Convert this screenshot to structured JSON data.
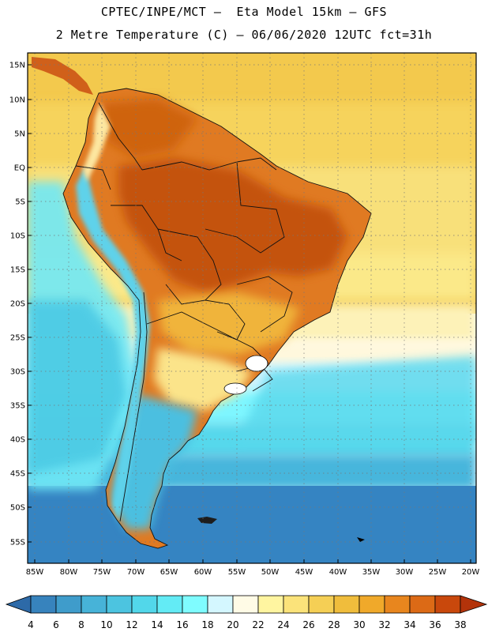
{
  "title": {
    "line1": "CPTEC/INPE/MCT –  Eta Model 15km – GFS",
    "line2": "2 Metre Temperature (C) – 06/06/2020 12UTC fct=31h"
  },
  "map": {
    "region": "South America",
    "variable": "2 Metre Temperature",
    "units": "C",
    "lat_labels": [
      "15N",
      "10N",
      "5N",
      "EQ",
      "5S",
      "10S",
      "15S",
      "20S",
      "25S",
      "30S",
      "35S",
      "40S",
      "45S",
      "50S",
      "55S"
    ],
    "lon_labels": [
      "85W",
      "80W",
      "75W",
      "70W",
      "65W",
      "60W",
      "55W",
      "50W",
      "45W",
      "40W",
      "35W",
      "30W",
      "25W",
      "20W"
    ]
  },
  "colorbar": {
    "ticks": [
      "4",
      "6",
      "8",
      "10",
      "12",
      "14",
      "16",
      "18",
      "20",
      "22",
      "24",
      "26",
      "28",
      "30",
      "32",
      "34",
      "36",
      "38"
    ],
    "colors": [
      "#2d6aa8",
      "#3783bd",
      "#3f9ccb",
      "#47b3d8",
      "#4cc4e0",
      "#52d7ea",
      "#63ebf5",
      "#7ffcff",
      "#d4f7ff",
      "#fffbe6",
      "#fff5a0",
      "#fbe37a",
      "#f5cf55",
      "#f0bd3c",
      "#f0a92a",
      "#e8861e",
      "#dc6a16",
      "#c9480c",
      "#b3330a"
    ]
  },
  "chart_data": {
    "type": "heatmap",
    "title": "2 Metre Temperature (C) – 06/06/2020 12UTC fct=31h",
    "model": "Eta Model 15km – GFS",
    "x_range": [
      -85,
      -20
    ],
    "y_range": [
      -58,
      17
    ],
    "color_levels": [
      4,
      6,
      8,
      10,
      12,
      14,
      16,
      18,
      20,
      22,
      24,
      26,
      28,
      30,
      32,
      34,
      36,
      38
    ]
  },
  "palette": {
    "frame": "#000000",
    "grid": "#777777",
    "border": "#111111"
  }
}
